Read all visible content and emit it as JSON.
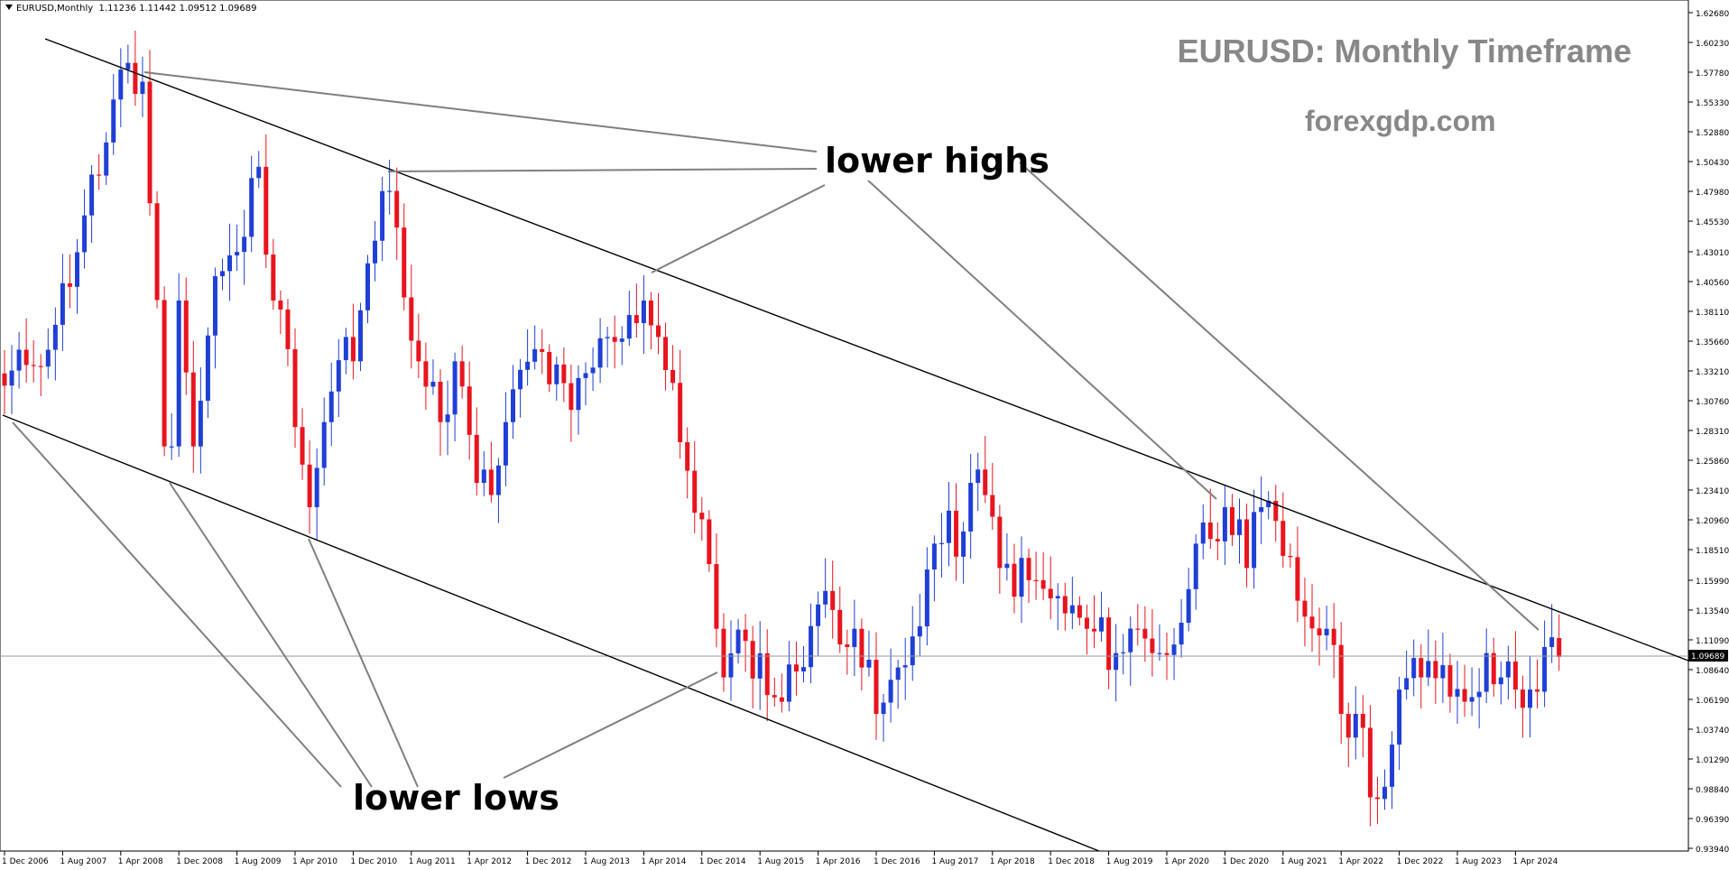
{
  "header": {
    "symbol": "EURUSD,Monthly",
    "ohlc": "1.11236 1.11442 1.09512 1.09689"
  },
  "watermark": {
    "title": "EURUSD: Monthly Timeframe",
    "site": "forexgdp.com"
  },
  "annotations": {
    "lower_highs": "lower highs",
    "lower_lows": "lower lows"
  },
  "colors": {
    "bull": "#1f3fd6",
    "bear": "#e8141e",
    "trendline": "#000000",
    "pointer": "#7f7f7f",
    "current_price_bg": "#000000"
  },
  "chart_data": {
    "type": "candlestick",
    "title": "EURUSD: Monthly Timeframe",
    "ylim": [
      0.9394,
      1.6268
    ],
    "y_ticks": [
      "1.62680",
      "1.60230",
      "1.57780",
      "1.55330",
      "1.52880",
      "1.50430",
      "1.47980",
      "1.45530",
      "1.43010",
      "1.40560",
      "1.38110",
      "1.35660",
      "1.33210",
      "1.30760",
      "1.28310",
      "1.25860",
      "1.23410",
      "1.20960",
      "1.18510",
      "1.15990",
      "1.13540",
      "1.11090",
      "1.08640",
      "1.06190",
      "1.03740",
      "1.01290",
      "0.98840",
      "0.96390",
      "0.93940"
    ],
    "x_ticks": [
      "1 Dec 2006",
      "1 Aug 2007",
      "1 Apr 2008",
      "1 Dec 2008",
      "1 Aug 2009",
      "1 Apr 2010",
      "1 Dec 2010",
      "1 Aug 2011",
      "1 Apr 2012",
      "1 Dec 2012",
      "1 Aug 2013",
      "1 Apr 2014",
      "1 Dec 2014",
      "1 Aug 2015",
      "1 Apr 2016",
      "1 Dec 2016",
      "1 Aug 2017",
      "1 Apr 2018",
      "1 Dec 2018",
      "1 Aug 2019",
      "1 Apr 2020",
      "1 Dec 2020",
      "1 Aug 2021",
      "1 Apr 2022",
      "1 Dec 2022",
      "1 Aug 2023",
      "1 Apr 2024"
    ],
    "current_price": "1.09689",
    "anchors": [
      [
        "2006-12",
        1.32
      ],
      [
        "2007-03",
        1.337
      ],
      [
        "2007-07",
        1.37
      ],
      [
        "2007-11",
        1.46
      ],
      [
        "2008-02",
        1.52
      ],
      [
        "2008-04",
        1.58
      ],
      [
        "2008-06",
        1.56
      ],
      [
        "2008-07",
        1.57
      ],
      [
        "2008-08",
        1.47
      ],
      [
        "2008-10",
        1.27
      ],
      [
        "2008-11",
        1.27
      ],
      [
        "2008-12",
        1.39
      ],
      [
        "2009-02",
        1.27
      ],
      [
        "2009-05",
        1.41
      ],
      [
        "2009-08",
        1.43
      ],
      [
        "2009-11",
        1.5
      ],
      [
        "2010-01",
        1.39
      ],
      [
        "2010-03",
        1.35
      ],
      [
        "2010-06",
        1.22
      ],
      [
        "2010-08",
        1.29
      ],
      [
        "2010-11",
        1.36
      ],
      [
        "2010-12",
        1.34
      ],
      [
        "2011-04",
        1.48
      ],
      [
        "2011-06",
        1.45
      ],
      [
        "2011-09",
        1.34
      ],
      [
        "2011-12",
        1.29
      ],
      [
        "2012-02",
        1.34
      ],
      [
        "2012-05",
        1.24
      ],
      [
        "2012-07",
        1.23
      ],
      [
        "2012-09",
        1.29
      ],
      [
        "2013-01",
        1.35
      ],
      [
        "2013-06",
        1.3
      ],
      [
        "2013-11",
        1.36
      ],
      [
        "2014-04",
        1.39
      ],
      [
        "2014-06",
        1.36
      ],
      [
        "2014-10",
        1.25
      ],
      [
        "2014-12",
        1.21
      ],
      [
        "2015-02",
        1.12
      ],
      [
        "2015-03",
        1.08
      ],
      [
        "2015-06",
        1.11
      ],
      [
        "2015-11",
        1.06
      ],
      [
        "2016-04",
        1.14
      ],
      [
        "2016-09",
        1.12
      ],
      [
        "2016-12",
        1.05
      ],
      [
        "2017-04",
        1.09
      ],
      [
        "2017-08",
        1.19
      ],
      [
        "2017-12",
        1.2
      ],
      [
        "2018-01",
        1.24
      ],
      [
        "2018-03",
        1.23
      ],
      [
        "2018-05",
        1.17
      ],
      [
        "2018-09",
        1.16
      ],
      [
        "2018-12",
        1.145
      ],
      [
        "2019-05",
        1.12
      ],
      [
        "2019-09",
        1.1
      ],
      [
        "2019-12",
        1.12
      ],
      [
        "2020-02",
        1.1
      ],
      [
        "2020-03",
        1.1
      ],
      [
        "2020-06",
        1.125
      ],
      [
        "2020-08",
        1.19
      ],
      [
        "2020-12",
        1.22
      ],
      [
        "2021-02",
        1.21
      ],
      [
        "2021-03",
        1.17
      ],
      [
        "2021-05",
        1.22
      ],
      [
        "2021-08",
        1.18
      ],
      [
        "2021-11",
        1.13
      ],
      [
        "2022-02",
        1.12
      ],
      [
        "2022-04",
        1.05
      ],
      [
        "2022-06",
        1.05
      ],
      [
        "2022-09",
        0.98
      ],
      [
        "2022-10",
        0.99
      ],
      [
        "2022-12",
        1.07
      ],
      [
        "2023-03",
        1.08
      ],
      [
        "2023-06",
        1.09
      ],
      [
        "2023-09",
        1.06
      ],
      [
        "2023-12",
        1.1
      ],
      [
        "2024-02",
        1.08
      ],
      [
        "2024-04",
        1.07
      ],
      [
        "2024-06",
        1.07
      ],
      [
        "2024-08",
        1.105
      ],
      [
        "2024-09",
        1.113
      ],
      [
        "2024-10",
        1.09
      ]
    ]
  }
}
